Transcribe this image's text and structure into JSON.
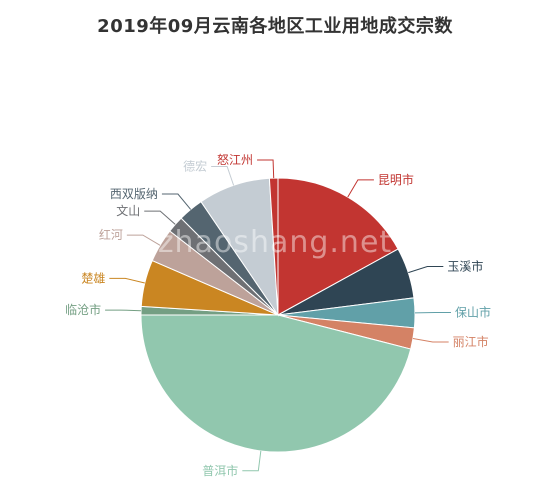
{
  "chart_data": {
    "type": "pie",
    "title": "2019年09月云南各地区工业用地成交宗数",
    "watermark": "zhaoshang.net",
    "categories": [
      "昆明市",
      "玉溪市",
      "保山市",
      "丽江市",
      "普洱市",
      "临沧市",
      "楚雄",
      "红河",
      "文山",
      "西双版纳",
      "德宏",
      "怒江州"
    ],
    "values": [
      17,
      6,
      3.5,
      2.5,
      46,
      1,
      5.5,
      4,
      2,
      3,
      8.5,
      1
    ],
    "colors": [
      "#c23531",
      "#2f4554",
      "#61a0a8",
      "#d48265",
      "#91c7ae",
      "#749f83",
      "#ca8622",
      "#bda29a",
      "#6e7074",
      "#546570",
      "#c4ccd3",
      "#c23531"
    ],
    "legend": "none",
    "labels": "outside-with-leader-lines"
  }
}
